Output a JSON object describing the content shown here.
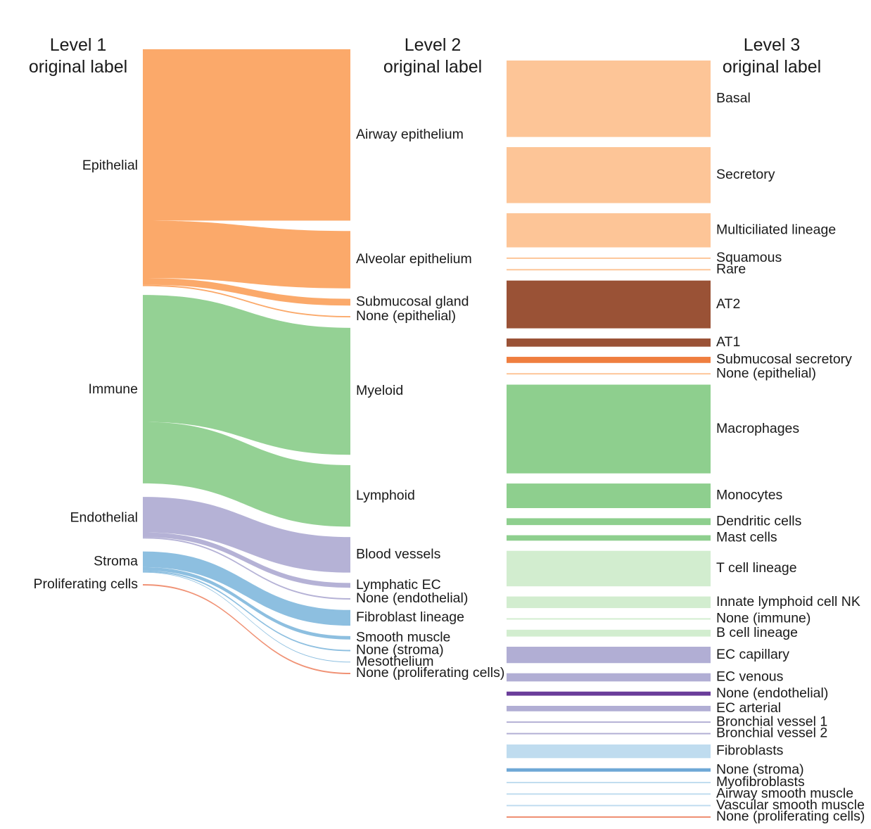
{
  "chart_data": {
    "type": "sankey",
    "title": "",
    "columns": [
      {
        "id": "level1",
        "header_line1": "Level 1",
        "header_line2": "original label"
      },
      {
        "id": "level2",
        "header_line1": "Level 2",
        "header_line2": "original label"
      },
      {
        "id": "level3",
        "header_line1": "Level 3",
        "header_line2": "original label"
      }
    ],
    "colors": {
      "epithelial": "#fba462",
      "epithelial_light": "#fdc597",
      "alveolar": "#9a5236",
      "submucosal": "#ef7e3f",
      "immune": "#8ecf8e",
      "lymphoid_light": "#d2edcf",
      "endothelial": "#b1aed4",
      "endothelial_dark": "#6a3d9a",
      "stroma": "#87bcde",
      "stroma_light": "#bfdcef",
      "stroma_mid": "#6ea8d6",
      "proliferating": "#ef8c6e"
    },
    "level1": [
      {
        "name": "Epithelial",
        "value": 342
      },
      {
        "name": "Immune",
        "value": 278
      },
      {
        "name": "Endothelial",
        "value": 62
      },
      {
        "name": "Stroma",
        "value": 30
      },
      {
        "name": "Proliferating cells",
        "value": 2
      }
    ],
    "level2": [
      {
        "name": "Airway epithelium",
        "parent": "Epithelial",
        "value": 251
      },
      {
        "name": "Alveolar epithelium",
        "parent": "Epithelial",
        "value": 84
      },
      {
        "name": "Submucosal gland",
        "parent": "Epithelial",
        "value": 10
      },
      {
        "name": "None (epithelial)",
        "parent": "Epithelial",
        "value": 2
      },
      {
        "name": "Myeloid",
        "parent": "Immune",
        "value": 186
      },
      {
        "name": "Lymphoid",
        "parent": "Immune",
        "value": 90
      },
      {
        "name": "Blood vessels",
        "parent": "Endothelial",
        "value": 52
      },
      {
        "name": "Lymphatic EC",
        "parent": "Endothelial",
        "value": 7
      },
      {
        "name": "None (endothelial)",
        "parent": "Endothelial",
        "value": 2
      },
      {
        "name": "Fibroblast lineage",
        "parent": "Stroma",
        "value": 23
      },
      {
        "name": "Smooth muscle",
        "parent": "Stroma",
        "value": 5
      },
      {
        "name": "None (stroma)",
        "parent": "Stroma",
        "value": 2
      },
      {
        "name": "Mesothelium",
        "parent": "Stroma",
        "value": 1
      },
      {
        "name": "None (proliferating cells)",
        "parent": "Proliferating cells",
        "value": 2
      }
    ],
    "level3": [
      {
        "name": "Basal",
        "parent": "Airway epithelium",
        "value": 112
      },
      {
        "name": "Secretory",
        "parent": "Airway epithelium",
        "value": 82
      },
      {
        "name": "Multiciliated lineage",
        "parent": "Airway epithelium",
        "value": 50
      },
      {
        "name": "Squamous",
        "parent": "Airway epithelium",
        "value": 2
      },
      {
        "name": "Rare",
        "parent": "Airway epithelium",
        "value": 2
      },
      {
        "name": "AT2",
        "parent": "Alveolar epithelium",
        "value": 70
      },
      {
        "name": "AT1",
        "parent": "Alveolar epithelium",
        "value": 12
      },
      {
        "name": "Submucosal secretory",
        "parent": "Submucosal gland",
        "value": 9
      },
      {
        "name": "None (epithelial)",
        "parent": "None (epithelial)",
        "value": 2
      },
      {
        "name": "Macrophages",
        "parent": "Myeloid",
        "value": 130
      },
      {
        "name": "Monocytes",
        "parent": "Myeloid",
        "value": 36
      },
      {
        "name": "Dendritic cells",
        "parent": "Myeloid",
        "value": 10
      },
      {
        "name": "Mast cells",
        "parent": "Myeloid",
        "value": 8
      },
      {
        "name": "T cell lineage",
        "parent": "Lymphoid",
        "value": 52
      },
      {
        "name": "Innate lymphoid cell NK",
        "parent": "Lymphoid",
        "value": 17
      },
      {
        "name": "None (immune)",
        "parent": "Lymphoid",
        "value": 2
      },
      {
        "name": "B cell lineage",
        "parent": "Lymphoid",
        "value": 10
      },
      {
        "name": "EC capillary",
        "parent": "Blood vessels",
        "value": 24
      },
      {
        "name": "EC venous",
        "parent": "Blood vessels",
        "value": 12
      },
      {
        "name": "None (endothelial)",
        "parent": "None (endothelial)",
        "value": 6
      },
      {
        "name": "EC arterial",
        "parent": "Blood vessels",
        "value": 8
      },
      {
        "name": "Bronchial vessel 1",
        "parent": "Blood vessels",
        "value": 2
      },
      {
        "name": "Bronchial vessel 2",
        "parent": "Blood vessels",
        "value": 2
      },
      {
        "name": "Fibroblasts",
        "parent": "Fibroblast lineage",
        "value": 20
      },
      {
        "name": "None (stroma)",
        "parent": "None (stroma)",
        "value": 5
      },
      {
        "name": "Myofibroblasts",
        "parent": "Fibroblast lineage",
        "value": 2
      },
      {
        "name": "Airway smooth muscle",
        "parent": "Smooth muscle",
        "value": 2
      },
      {
        "name": "Vascular smooth muscle",
        "parent": "Smooth muscle",
        "value": 2
      },
      {
        "name": "None (proliferating cells)",
        "parent": "None (proliferating cells)",
        "value": 2
      }
    ],
    "node_colors": {
      "Epithelial": "epithelial",
      "Immune": "immune",
      "Endothelial": "endothelial",
      "Stroma": "stroma",
      "Proliferating cells": "proliferating",
      "Airway epithelium": "epithelial",
      "Alveolar epithelium": "epithelial",
      "Submucosal gland": "epithelial",
      "None (epithelial)": "epithelial",
      "Myeloid": "immune",
      "Lymphoid": "immune",
      "Blood vessels": "endothelial",
      "Lymphatic EC": "endothelial",
      "None (endothelial)": "endothelial",
      "Fibroblast lineage": "stroma",
      "Smooth muscle": "stroma",
      "None (stroma)": "stroma",
      "Mesothelium": "stroma",
      "None (proliferating cells)": "proliferating"
    },
    "level3_colors": {
      "Basal": "epithelial_light",
      "Secretory": "epithelial_light",
      "Multiciliated lineage": "epithelial_light",
      "Squamous": "epithelial_light",
      "Rare": "epithelial_light",
      "AT2": "alveolar",
      "AT1": "alveolar",
      "Submucosal secretory": "submucosal",
      "None (epithelial)": "epithelial_light",
      "Macrophages": "immune",
      "Monocytes": "immune",
      "Dendritic cells": "immune",
      "Mast cells": "immune",
      "T cell lineage": "lymphoid_light",
      "Innate lymphoid cell NK": "lymphoid_light",
      "None (immune)": "lymphoid_light",
      "B cell lineage": "lymphoid_light",
      "EC capillary": "endothelial",
      "EC venous": "endothelial",
      "None (endothelial)": "endothelial_dark",
      "EC arterial": "endothelial",
      "Bronchial vessel 1": "endothelial",
      "Bronchial vessel 2": "endothelial",
      "Fibroblasts": "stroma_light",
      "None (stroma)": "stroma_mid",
      "Myofibroblasts": "stroma_light",
      "Airway smooth muscle": "stroma_light",
      "Vascular smooth muscle": "stroma_light",
      "None (proliferating cells)": "proliferating"
    }
  }
}
